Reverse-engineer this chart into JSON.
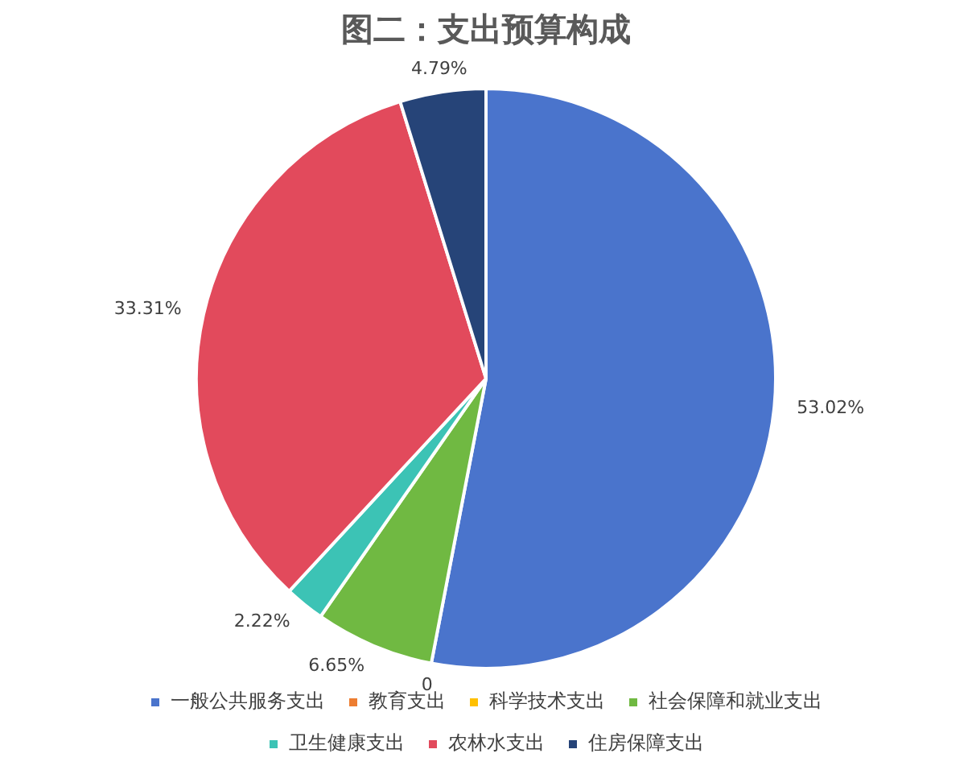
{
  "chart_data": {
    "type": "pie",
    "title": "图二：支出预算构成",
    "categories": [
      "一般公共服务支出",
      "教育支出",
      "科学技术支出",
      "社会保障和就业支出",
      "卫生健康支出",
      "农林水支出",
      "住房保障支出"
    ],
    "values": [
      53.02,
      0,
      0,
      6.65,
      2.22,
      33.31,
      4.79
    ],
    "colors": [
      "#4a74cc",
      "#ed7d31",
      "#ffc000",
      "#70b942",
      "#3cc3b5",
      "#e24a5c",
      "#264478"
    ],
    "value_labels": [
      "53.02%",
      "0",
      null,
      "6.65%",
      "2.22%",
      "33.31%",
      "4.79%"
    ],
    "legend": "bottom"
  }
}
